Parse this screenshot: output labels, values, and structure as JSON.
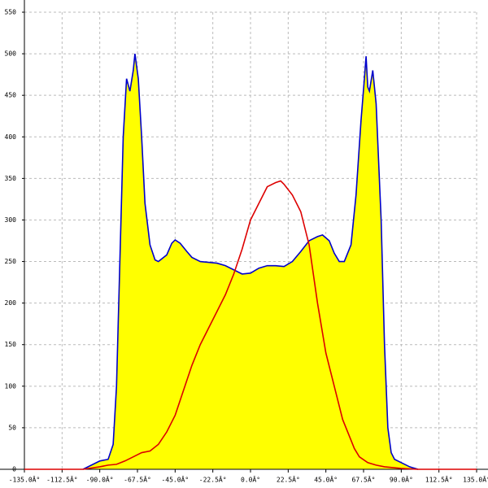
{
  "chart_data": {
    "type": "area",
    "xlim": [
      -135,
      135
    ],
    "xticks": [
      {
        "value": -135,
        "label": "-135.0Â°"
      },
      {
        "value": -112.5,
        "label": "-112.5Â°"
      },
      {
        "value": -90,
        "label": "-90.0Â°"
      },
      {
        "value": -67.5,
        "label": "-67.5Â°"
      },
      {
        "value": -45,
        "label": "-45.0Â°"
      },
      {
        "value": -22.5,
        "label": "-22.5Â°"
      },
      {
        "value": 0,
        "label": "0.0Â°"
      },
      {
        "value": 22.5,
        "label": "22.5Â°"
      },
      {
        "value": 45,
        "label": "45.0Â°"
      },
      {
        "value": 67.5,
        "label": "67.5Â°"
      },
      {
        "value": 90,
        "label": "90.0Â°"
      },
      {
        "value": 112.5,
        "label": "112.5Â°"
      },
      {
        "value": 135,
        "label": "135.0Â°"
      }
    ],
    "ylim": [
      0,
      550
    ],
    "yticks": [
      0,
      50,
      100,
      150,
      200,
      250,
      300,
      350,
      400,
      450,
      500,
      550
    ],
    "grid": true,
    "series": [
      {
        "color": "#0000cc",
        "fill": "#ffff00",
        "x": [
          -100,
          -95,
          -90,
          -85,
          -82,
          -80,
          -78,
          -76,
          -74,
          -72,
          -70,
          -69,
          -67,
          -65,
          -63,
          -60,
          -57,
          -55,
          -50,
          -47,
          -45,
          -42,
          -38,
          -35,
          -30,
          -25,
          -20,
          -15,
          -10,
          -5,
          0,
          5,
          10,
          15,
          20,
          25,
          30,
          35,
          40,
          43,
          47,
          50,
          53,
          56,
          60,
          63,
          66,
          68,
          69,
          70,
          71,
          73,
          75,
          78,
          80,
          82,
          84,
          86,
          90,
          95,
          100
        ],
        "values": [
          0,
          5,
          10,
          12,
          30,
          100,
          250,
          400,
          470,
          455,
          480,
          500,
          470,
          400,
          320,
          270,
          252,
          250,
          258,
          272,
          276,
          272,
          262,
          255,
          250,
          249,
          248,
          245,
          240,
          235,
          236,
          242,
          245,
          245,
          244,
          250,
          262,
          275,
          280,
          282,
          275,
          260,
          250,
          250,
          270,
          330,
          420,
          470,
          497,
          460,
          455,
          480,
          440,
          300,
          150,
          50,
          20,
          12,
          8,
          3,
          0
        ]
      },
      {
        "color": "#dd0000",
        "x": [
          -135,
          -100,
          -90,
          -85,
          -80,
          -75,
          -70,
          -65,
          -60,
          -55,
          -50,
          -45,
          -40,
          -35,
          -30,
          -25,
          -20,
          -15,
          -10,
          -5,
          0,
          5,
          10,
          15,
          18,
          20,
          25,
          30,
          35,
          40,
          45,
          50,
          55,
          60,
          62,
          65,
          70,
          75,
          80,
          85,
          90,
          100,
          135
        ],
        "values": [
          0,
          0,
          3,
          5,
          6,
          10,
          15,
          20,
          22,
          30,
          45,
          65,
          95,
          125,
          150,
          170,
          190,
          210,
          235,
          265,
          300,
          320,
          340,
          345,
          347,
          343,
          330,
          310,
          270,
          200,
          140,
          100,
          60,
          35,
          25,
          15,
          8,
          5,
          3,
          2,
          1,
          0,
          0
        ]
      }
    ]
  }
}
